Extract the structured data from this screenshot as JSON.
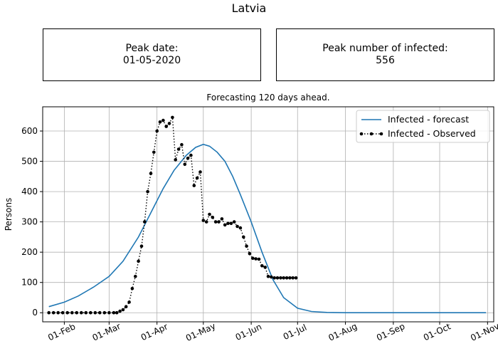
{
  "title": "Latvia",
  "info": {
    "peak_date_label": "Peak date:",
    "peak_date_value": "01-05-2020",
    "peak_number_label": "Peak number of infected:",
    "peak_number_value": "556"
  },
  "chart_data": {
    "type": "line",
    "title": "Forecasting 120 days ahead.",
    "xlabel": "",
    "ylabel": "Persons",
    "x_ticks": [
      "01-Feb",
      "01-Mar",
      "01-Apr",
      "01-May",
      "01-Jun",
      "01-Jul",
      "01-Aug",
      "01-Sep",
      "01-Oct",
      "01-Nov"
    ],
    "x_range": [
      "2020-01-18",
      "2020-11-05"
    ],
    "y_ticks": [
      0,
      100,
      200,
      300,
      400,
      500,
      600
    ],
    "ylim": [
      -30,
      680
    ],
    "grid": true,
    "legend_position": "top-right",
    "colors": {
      "forecast": "#1f77b4",
      "observed": "#000000",
      "grid": "#b0b0b0"
    },
    "series": [
      {
        "name": "Infected - forecast",
        "style": "solid",
        "x": [
          "2020-01-22",
          "2020-02-01",
          "2020-02-10",
          "2020-02-20",
          "2020-03-01",
          "2020-03-10",
          "2020-03-20",
          "2020-03-28",
          "2020-04-05",
          "2020-04-12",
          "2020-04-20",
          "2020-04-26",
          "2020-05-01",
          "2020-05-05",
          "2020-05-10",
          "2020-05-15",
          "2020-05-20",
          "2020-05-25",
          "2020-06-01",
          "2020-06-08",
          "2020-06-15",
          "2020-06-22",
          "2020-07-01",
          "2020-07-10",
          "2020-07-20",
          "2020-08-01",
          "2020-09-01",
          "2020-10-01",
          "2020-10-31"
        ],
        "y": [
          20,
          35,
          55,
          85,
          120,
          170,
          250,
          330,
          410,
          470,
          520,
          546,
          556,
          550,
          530,
          500,
          450,
          390,
          300,
          200,
          110,
          50,
          15,
          4,
          1,
          0,
          0,
          0,
          0
        ]
      },
      {
        "name": "Infected - Observed",
        "style": "dotted-markers",
        "x": [
          "2020-01-22",
          "2020-01-25",
          "2020-01-28",
          "2020-01-31",
          "2020-02-03",
          "2020-02-06",
          "2020-02-09",
          "2020-02-12",
          "2020-02-15",
          "2020-02-18",
          "2020-02-21",
          "2020-02-24",
          "2020-02-27",
          "2020-03-01",
          "2020-03-04",
          "2020-03-06",
          "2020-03-08",
          "2020-03-10",
          "2020-03-12",
          "2020-03-14",
          "2020-03-16",
          "2020-03-18",
          "2020-03-20",
          "2020-03-22",
          "2020-03-24",
          "2020-03-26",
          "2020-03-28",
          "2020-03-30",
          "2020-04-01",
          "2020-04-03",
          "2020-04-05",
          "2020-04-07",
          "2020-04-09",
          "2020-04-11",
          "2020-04-13",
          "2020-04-15",
          "2020-04-17",
          "2020-04-19",
          "2020-04-21",
          "2020-04-23",
          "2020-04-25",
          "2020-04-27",
          "2020-04-29",
          "2020-05-01",
          "2020-05-03",
          "2020-05-05",
          "2020-05-07",
          "2020-05-09",
          "2020-05-11",
          "2020-05-13",
          "2020-05-15",
          "2020-05-17",
          "2020-05-19",
          "2020-05-21",
          "2020-05-23",
          "2020-05-25",
          "2020-05-27",
          "2020-05-29",
          "2020-05-31",
          "2020-06-02",
          "2020-06-04",
          "2020-06-06",
          "2020-06-08",
          "2020-06-10",
          "2020-06-12",
          "2020-06-14",
          "2020-06-16",
          "2020-06-18",
          "2020-06-20",
          "2020-06-22",
          "2020-06-24",
          "2020-06-26",
          "2020-06-28",
          "2020-06-30"
        ],
        "y": [
          0,
          0,
          0,
          0,
          0,
          0,
          0,
          0,
          0,
          0,
          0,
          0,
          0,
          0,
          0,
          0,
          5,
          10,
          20,
          35,
          80,
          120,
          170,
          220,
          300,
          400,
          460,
          530,
          600,
          630,
          635,
          615,
          625,
          645,
          505,
          540,
          555,
          490,
          510,
          520,
          420,
          445,
          465,
          305,
          300,
          325,
          315,
          300,
          300,
          310,
          290,
          295,
          295,
          300,
          285,
          280,
          250,
          220,
          195,
          180,
          178,
          177,
          155,
          150,
          120,
          118,
          115,
          115,
          115,
          115,
          115,
          115,
          115,
          115
        ]
      }
    ]
  }
}
